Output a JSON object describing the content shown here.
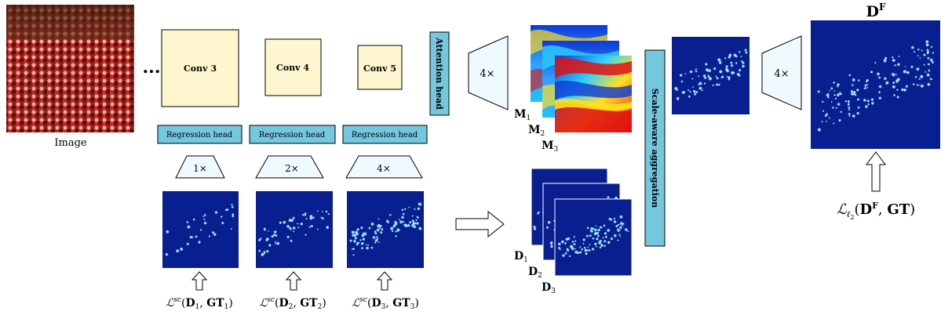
{
  "image_caption": "Image",
  "ellipsis": "...",
  "conv_blocks": [
    "Conv 3",
    "Conv 4",
    "Conv 5"
  ],
  "attention_head": "Attention head",
  "regression_heads": [
    "Regression head",
    "Regression head",
    "Regression head"
  ],
  "upsample_factors": [
    "1×",
    "2×",
    "4×"
  ],
  "attention_upsample": "4×",
  "final_upsample": "4×",
  "attention_maps": [
    "M",
    "M",
    "M"
  ],
  "attention_map_subscripts": [
    "1",
    "2",
    "3"
  ],
  "density_maps": [
    "D",
    "D",
    "D"
  ],
  "density_map_subscripts": [
    "1",
    "2",
    "3"
  ],
  "scale_aware_aggregation": "Scale-aware aggregation",
  "final_density_label": "D",
  "final_density_sup": "F",
  "scale_losses": [
    {
      "symbol": "ℒ",
      "sup": "sc",
      "d": "D",
      "gt": "GT",
      "sub": "1"
    },
    {
      "symbol": "ℒ",
      "sup": "sc",
      "d": "D",
      "gt": "GT",
      "sub": "2"
    },
    {
      "symbol": "ℒ",
      "sup": "sc",
      "d": "D",
      "gt": "GT",
      "sub": "3"
    }
  ],
  "final_loss": {
    "symbol": "ℒ",
    "sub": "ℓ",
    "subsub": "2",
    "d": "D",
    "sup": "F",
    "gt": "GT"
  },
  "colors": {
    "conv_fill": "#fdf6cf",
    "head_fill": "#75c7dd",
    "trap_fill": "#eefaff",
    "density_bg": "#0a1f8f",
    "density_dot": "#8fe3ff",
    "attn_red": "#e01010",
    "attn_yellow": "#ffe020",
    "attn_cyan": "#30d0ff",
    "attn_blue": "#0d3ad8"
  }
}
